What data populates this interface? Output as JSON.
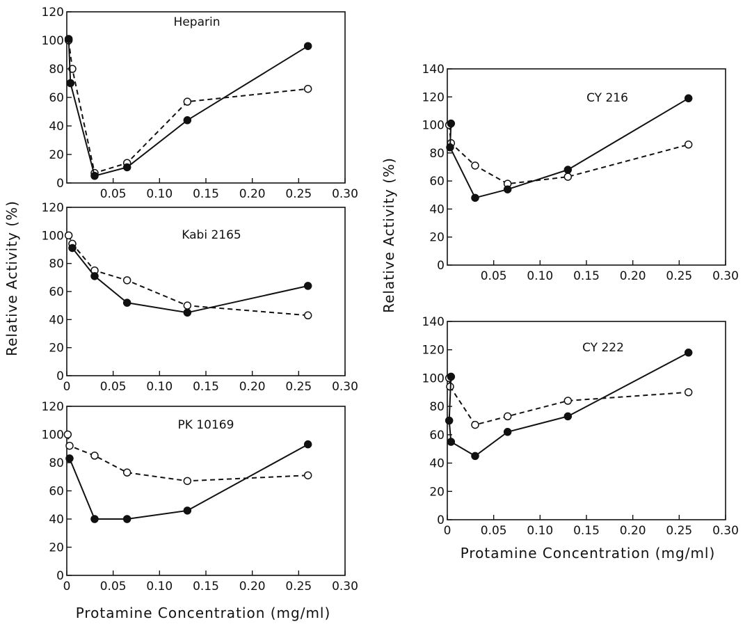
{
  "figure": {
    "ylabel_left": "Relative Activity (%)",
    "ylabel_right": "Relative Activity (%)",
    "xlabel_left": "Protamine Concentration (mg/ml)",
    "xlabel_right": "Protamine Concentration (mg/ml)"
  },
  "chart_data": [
    {
      "type": "line",
      "title": "Heparin",
      "xlim": [
        0,
        0.3
      ],
      "ylim": [
        0,
        120
      ],
      "xticks": [
        "0.05",
        "0.10",
        "0.15",
        "0.20",
        "0.25",
        "0.30"
      ],
      "yticks": [
        "0",
        "20",
        "40",
        "60",
        "80",
        "100",
        "120"
      ],
      "series": [
        {
          "marker": "filled-circle",
          "line": "solid",
          "x": [
            0.002,
            0.004,
            0.03,
            0.065,
            0.13,
            0.26
          ],
          "y": [
            101,
            70,
            5,
            11,
            44,
            96
          ]
        },
        {
          "marker": "open-circle",
          "line": "dashed",
          "x": [
            0.002,
            0.006,
            0.03,
            0.065,
            0.13,
            0.26
          ],
          "y": [
            100,
            80,
            7,
            14,
            57,
            66
          ]
        }
      ]
    },
    {
      "type": "line",
      "title": "Kabi 2165",
      "xlim": [
        0,
        0.3
      ],
      "ylim": [
        0,
        120
      ],
      "xticks": [
        "0",
        "0.05",
        "0.10",
        "0.15",
        "0.20",
        "0.25",
        "0.30"
      ],
      "yticks": [
        "0",
        "20",
        "40",
        "60",
        "80",
        "100",
        "120"
      ],
      "series": [
        {
          "marker": "filled-circle",
          "line": "solid",
          "x": [
            0.006,
            0.03,
            0.065,
            0.13,
            0.26
          ],
          "y": [
            91,
            71,
            52,
            45,
            64
          ]
        },
        {
          "marker": "open-circle",
          "line": "dashed",
          "x": [
            0.002,
            0.006,
            0.03,
            0.065,
            0.13,
            0.26
          ],
          "y": [
            100,
            94,
            75,
            68,
            50,
            43
          ]
        }
      ]
    },
    {
      "type": "line",
      "title": "PK 10169",
      "xlim": [
        0,
        0.3
      ],
      "ylim": [
        0,
        120
      ],
      "xticks": [
        "0",
        "0.05",
        "0.10",
        "0.15",
        "0.20",
        "0.25",
        "0.30"
      ],
      "yticks": [
        "0",
        "20",
        "40",
        "60",
        "80",
        "100",
        "120"
      ],
      "series": [
        {
          "marker": "filled-circle",
          "line": "solid",
          "x": [
            0.003,
            0.03,
            0.065,
            0.13,
            0.26
          ],
          "y": [
            83,
            40,
            40,
            46,
            93
          ]
        },
        {
          "marker": "open-circle",
          "line": "dashed",
          "x": [
            0.001,
            0.003,
            0.03,
            0.065,
            0.13,
            0.26
          ],
          "y": [
            100,
            92,
            85,
            73,
            67,
            71
          ]
        }
      ]
    },
    {
      "type": "line",
      "title": "CY 216",
      "xlim": [
        0,
        0.3
      ],
      "ylim": [
        0,
        140
      ],
      "xticks": [
        "0.05",
        "0.10",
        "0.15",
        "0.20",
        "0.25",
        "0.30"
      ],
      "yticks": [
        "0",
        "20",
        "40",
        "60",
        "80",
        "100",
        "120",
        "140"
      ],
      "series": [
        {
          "marker": "filled-circle",
          "line": "solid",
          "x": [
            0.004,
            0.003,
            0.03,
            0.065,
            0.13,
            0.26
          ],
          "y": [
            101,
            84,
            48,
            54,
            68,
            119
          ]
        },
        {
          "marker": "open-circle",
          "line": "dashed",
          "x": [
            0.002,
            0.004,
            0.03,
            0.065,
            0.13,
            0.26
          ],
          "y": [
            100,
            87,
            71,
            58,
            63,
            86
          ]
        }
      ]
    },
    {
      "type": "line",
      "title": "CY 222",
      "xlim": [
        0,
        0.3
      ],
      "ylim": [
        0,
        140
      ],
      "xticks": [
        "0",
        "0.05",
        "0.10",
        "0.15",
        "0.20",
        "0.25",
        "0.30"
      ],
      "yticks": [
        "0",
        "20",
        "40",
        "60",
        "80",
        "100",
        "120",
        "140"
      ],
      "series": [
        {
          "marker": "filled-circle",
          "line": "solid",
          "x": [
            0.004,
            0.002,
            0.004,
            0.03,
            0.065,
            0.13,
            0.26
          ],
          "y": [
            101,
            70,
            55,
            45,
            62,
            73,
            118
          ]
        },
        {
          "marker": "open-circle",
          "line": "dashed",
          "x": [
            0.002,
            0.003,
            0.03,
            0.065,
            0.13,
            0.26
          ],
          "y": [
            100,
            94,
            67,
            73,
            84,
            90
          ]
        }
      ]
    }
  ]
}
